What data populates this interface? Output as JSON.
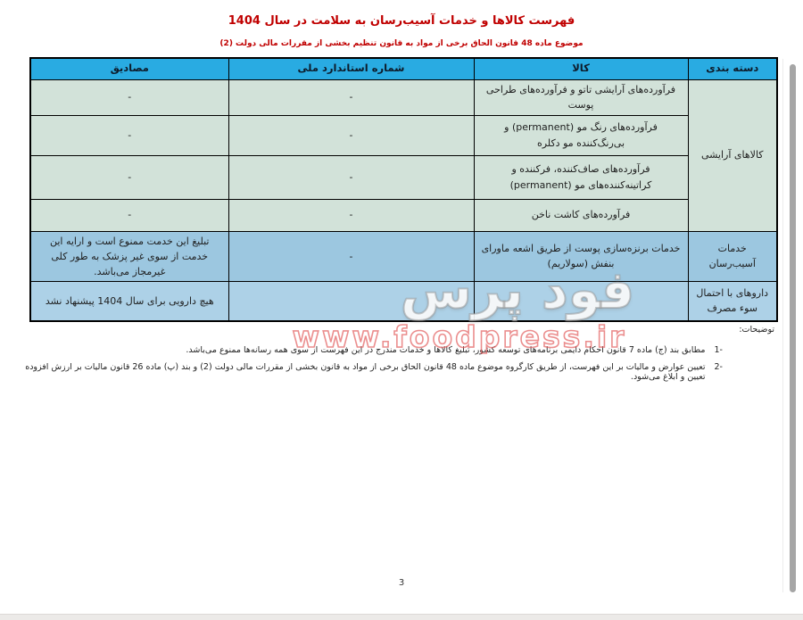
{
  "page": {
    "title": "فهرست کالاها و خدمات آسیب‌رسان به سلامت در سال 1404",
    "subtitle": "موضوع ماده 48 قانون الحاق برخی از مواد به قانون تنظیم بخشی از مقررات مالی دولت (2)",
    "page_number": "3"
  },
  "table": {
    "headers": {
      "category": "دسته بندی",
      "goods": "کالا",
      "standard": "شماره استاندارد ملی",
      "examples": "مصادیق"
    },
    "groups": [
      {
        "category": "کالاهای آرایشی",
        "rows": [
          {
            "goods": "فرآورده‌های آرایشی تاتو و فرآورده‌های طراحی پوست",
            "standard": "-",
            "examples": "-"
          },
          {
            "goods": "فرآورده‌های رنگ مو (permanent) و بی‌رنگ‌کننده مو دکلره",
            "standard": "-",
            "examples": "-"
          },
          {
            "goods": "فرآورده‌های صاف‌کننده، فرکننده و کراتینه‌کننده‌های مو (permanent)",
            "standard": "-",
            "examples": "-"
          },
          {
            "goods": "فرآورده‌های کاشت ناخن",
            "standard": "-",
            "examples": "-"
          }
        ]
      },
      {
        "category": "خدمات آسیب‌رسان",
        "rows": [
          {
            "goods": "خدمات برنزه‌سازی پوست از طریق اشعه ماورای بنفش (سولاریم)",
            "standard": "-",
            "examples": "تبلیغ این خدمت ممنوع است و ارایه این خدمت از سوی غیر پزشک به طور کلی غیرمجاز می‌باشد."
          }
        ]
      },
      {
        "category": "داروهای با احتمال سوء مصرف",
        "rows": [
          {
            "goods": "-",
            "standard": "",
            "examples": "هیچ دارویی برای سال 1404 پیشنهاد نشد"
          }
        ]
      }
    ]
  },
  "footnotes": {
    "label": "توضیحات:",
    "items": [
      {
        "num": "1-",
        "text": "مطابق بند (ج) ماده 7 قانون احکام دایمی برنامه‌های توسعه کشور، تبلیغ کالاها و خدمات مندرج در این فهرست از سوی همه رسانه‌ها ممنوع می‌باشد."
      },
      {
        "num": "2-",
        "text": "تعیین عوارض و مالیات بر این فهرست، از طریق کارگروه موضوع ماده 48 قانون الحاق برخی از مواد به قانون بخشی از مقررات مالی دولت (2) و بند (پ) ماده 26 قانون مالیات بر ارزش افزوده تعیین و ابلاغ می‌شود."
      }
    ]
  },
  "watermark": {
    "brand": "فود پرس",
    "url": "www.foodpress.ir"
  },
  "colors": {
    "header_bg": "#29ABE2",
    "row_green": "#D2E2D9",
    "row_blue_dark": "#9CC7E0",
    "row_blue_light": "#ADD1E7",
    "title_red": "#C00000",
    "watermark_red": "#E25858",
    "scrollbar_gray": "#A6A6A6",
    "border_black": "#000000"
  }
}
